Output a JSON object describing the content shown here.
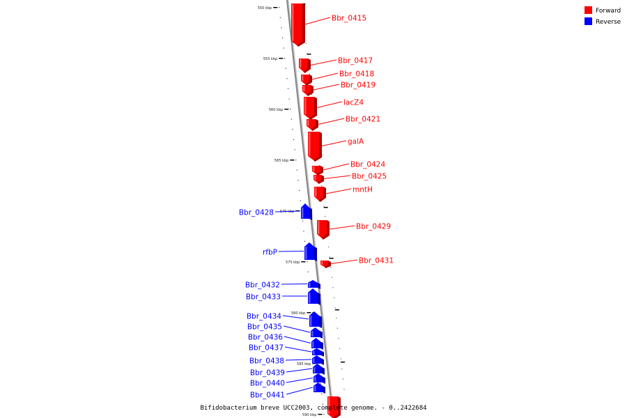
{
  "legend": {
    "forward_label": "Forward",
    "reverse_label": "Reverse",
    "forward_color": "#ff0000",
    "reverse_color": "#0000ff"
  },
  "caption": "Bifidobacterium breve UCC2003, complete genome. - 0..2422684",
  "colors": {
    "backbone": "#888888",
    "tick": "#000000"
  },
  "kbp_labels": [
    "550 kbp",
    "555 kbp",
    "560 kbp",
    "565 kbp",
    "570 kbp",
    "575 kbp",
    "580 kbp",
    "585 kbp",
    "590 kbp"
  ],
  "genes": [
    {
      "name": "Bbr_0415",
      "strand": "forward"
    },
    {
      "name": "Bbr_0417",
      "strand": "forward"
    },
    {
      "name": "Bbr_0418",
      "strand": "forward"
    },
    {
      "name": "Bbr_0419",
      "strand": "forward"
    },
    {
      "name": "lacZ4",
      "strand": "forward"
    },
    {
      "name": "Bbr_0421",
      "strand": "forward"
    },
    {
      "name": "galA",
      "strand": "forward"
    },
    {
      "name": "Bbr_0424",
      "strand": "forward"
    },
    {
      "name": "Bbr_0425",
      "strand": "forward"
    },
    {
      "name": "mntH",
      "strand": "forward"
    },
    {
      "name": "Bbr_0428",
      "strand": "reverse"
    },
    {
      "name": "Bbr_0429",
      "strand": "forward"
    },
    {
      "name": "rfbP",
      "strand": "reverse"
    },
    {
      "name": "Bbr_0431",
      "strand": "forward"
    },
    {
      "name": "Bbr_0432",
      "strand": "reverse"
    },
    {
      "name": "Bbr_0433",
      "strand": "reverse"
    },
    {
      "name": "Bbr_0434",
      "strand": "reverse"
    },
    {
      "name": "Bbr_0435",
      "strand": "reverse"
    },
    {
      "name": "Bbr_0436",
      "strand": "reverse"
    },
    {
      "name": "Bbr_0437",
      "strand": "reverse"
    },
    {
      "name": "Bbr_0438",
      "strand": "reverse"
    },
    {
      "name": "Bbr_0439",
      "strand": "reverse"
    },
    {
      "name": "Bbr_0440",
      "strand": "reverse"
    },
    {
      "name": "Bbr_0441",
      "strand": "reverse"
    },
    {
      "name": "",
      "strand": "forward"
    }
  ]
}
